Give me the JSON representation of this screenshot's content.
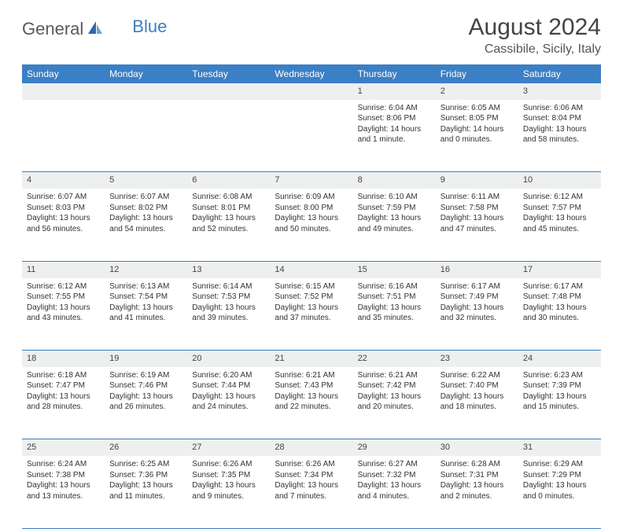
{
  "brand": {
    "name_gray": "General",
    "name_blue": "Blue"
  },
  "header": {
    "title": "August 2024",
    "location": "Cassibile, Sicily, Italy"
  },
  "colors": {
    "accent": "#3b7fc4",
    "header_text": "#ffffff",
    "daynum_bg": "#eef0f0"
  },
  "weekdays": [
    "Sunday",
    "Monday",
    "Tuesday",
    "Wednesday",
    "Thursday",
    "Friday",
    "Saturday"
  ],
  "weeks": [
    {
      "nums": [
        "",
        "",
        "",
        "",
        "1",
        "2",
        "3"
      ],
      "cells": [
        null,
        null,
        null,
        null,
        {
          "sunrise": "Sunrise: 6:04 AM",
          "sunset": "Sunset: 8:06 PM",
          "day1": "Daylight: 14 hours",
          "day2": "and 1 minute."
        },
        {
          "sunrise": "Sunrise: 6:05 AM",
          "sunset": "Sunset: 8:05 PM",
          "day1": "Daylight: 14 hours",
          "day2": "and 0 minutes."
        },
        {
          "sunrise": "Sunrise: 6:06 AM",
          "sunset": "Sunset: 8:04 PM",
          "day1": "Daylight: 13 hours",
          "day2": "and 58 minutes."
        }
      ]
    },
    {
      "nums": [
        "4",
        "5",
        "6",
        "7",
        "8",
        "9",
        "10"
      ],
      "cells": [
        {
          "sunrise": "Sunrise: 6:07 AM",
          "sunset": "Sunset: 8:03 PM",
          "day1": "Daylight: 13 hours",
          "day2": "and 56 minutes."
        },
        {
          "sunrise": "Sunrise: 6:07 AM",
          "sunset": "Sunset: 8:02 PM",
          "day1": "Daylight: 13 hours",
          "day2": "and 54 minutes."
        },
        {
          "sunrise": "Sunrise: 6:08 AM",
          "sunset": "Sunset: 8:01 PM",
          "day1": "Daylight: 13 hours",
          "day2": "and 52 minutes."
        },
        {
          "sunrise": "Sunrise: 6:09 AM",
          "sunset": "Sunset: 8:00 PM",
          "day1": "Daylight: 13 hours",
          "day2": "and 50 minutes."
        },
        {
          "sunrise": "Sunrise: 6:10 AM",
          "sunset": "Sunset: 7:59 PM",
          "day1": "Daylight: 13 hours",
          "day2": "and 49 minutes."
        },
        {
          "sunrise": "Sunrise: 6:11 AM",
          "sunset": "Sunset: 7:58 PM",
          "day1": "Daylight: 13 hours",
          "day2": "and 47 minutes."
        },
        {
          "sunrise": "Sunrise: 6:12 AM",
          "sunset": "Sunset: 7:57 PM",
          "day1": "Daylight: 13 hours",
          "day2": "and 45 minutes."
        }
      ]
    },
    {
      "nums": [
        "11",
        "12",
        "13",
        "14",
        "15",
        "16",
        "17"
      ],
      "cells": [
        {
          "sunrise": "Sunrise: 6:12 AM",
          "sunset": "Sunset: 7:55 PM",
          "day1": "Daylight: 13 hours",
          "day2": "and 43 minutes."
        },
        {
          "sunrise": "Sunrise: 6:13 AM",
          "sunset": "Sunset: 7:54 PM",
          "day1": "Daylight: 13 hours",
          "day2": "and 41 minutes."
        },
        {
          "sunrise": "Sunrise: 6:14 AM",
          "sunset": "Sunset: 7:53 PM",
          "day1": "Daylight: 13 hours",
          "day2": "and 39 minutes."
        },
        {
          "sunrise": "Sunrise: 6:15 AM",
          "sunset": "Sunset: 7:52 PM",
          "day1": "Daylight: 13 hours",
          "day2": "and 37 minutes."
        },
        {
          "sunrise": "Sunrise: 6:16 AM",
          "sunset": "Sunset: 7:51 PM",
          "day1": "Daylight: 13 hours",
          "day2": "and 35 minutes."
        },
        {
          "sunrise": "Sunrise: 6:17 AM",
          "sunset": "Sunset: 7:49 PM",
          "day1": "Daylight: 13 hours",
          "day2": "and 32 minutes."
        },
        {
          "sunrise": "Sunrise: 6:17 AM",
          "sunset": "Sunset: 7:48 PM",
          "day1": "Daylight: 13 hours",
          "day2": "and 30 minutes."
        }
      ]
    },
    {
      "nums": [
        "18",
        "19",
        "20",
        "21",
        "22",
        "23",
        "24"
      ],
      "cells": [
        {
          "sunrise": "Sunrise: 6:18 AM",
          "sunset": "Sunset: 7:47 PM",
          "day1": "Daylight: 13 hours",
          "day2": "and 28 minutes."
        },
        {
          "sunrise": "Sunrise: 6:19 AM",
          "sunset": "Sunset: 7:46 PM",
          "day1": "Daylight: 13 hours",
          "day2": "and 26 minutes."
        },
        {
          "sunrise": "Sunrise: 6:20 AM",
          "sunset": "Sunset: 7:44 PM",
          "day1": "Daylight: 13 hours",
          "day2": "and 24 minutes."
        },
        {
          "sunrise": "Sunrise: 6:21 AM",
          "sunset": "Sunset: 7:43 PM",
          "day1": "Daylight: 13 hours",
          "day2": "and 22 minutes."
        },
        {
          "sunrise": "Sunrise: 6:21 AM",
          "sunset": "Sunset: 7:42 PM",
          "day1": "Daylight: 13 hours",
          "day2": "and 20 minutes."
        },
        {
          "sunrise": "Sunrise: 6:22 AM",
          "sunset": "Sunset: 7:40 PM",
          "day1": "Daylight: 13 hours",
          "day2": "and 18 minutes."
        },
        {
          "sunrise": "Sunrise: 6:23 AM",
          "sunset": "Sunset: 7:39 PM",
          "day1": "Daylight: 13 hours",
          "day2": "and 15 minutes."
        }
      ]
    },
    {
      "nums": [
        "25",
        "26",
        "27",
        "28",
        "29",
        "30",
        "31"
      ],
      "cells": [
        {
          "sunrise": "Sunrise: 6:24 AM",
          "sunset": "Sunset: 7:38 PM",
          "day1": "Daylight: 13 hours",
          "day2": "and 13 minutes."
        },
        {
          "sunrise": "Sunrise: 6:25 AM",
          "sunset": "Sunset: 7:36 PM",
          "day1": "Daylight: 13 hours",
          "day2": "and 11 minutes."
        },
        {
          "sunrise": "Sunrise: 6:26 AM",
          "sunset": "Sunset: 7:35 PM",
          "day1": "Daylight: 13 hours",
          "day2": "and 9 minutes."
        },
        {
          "sunrise": "Sunrise: 6:26 AM",
          "sunset": "Sunset: 7:34 PM",
          "day1": "Daylight: 13 hours",
          "day2": "and 7 minutes."
        },
        {
          "sunrise": "Sunrise: 6:27 AM",
          "sunset": "Sunset: 7:32 PM",
          "day1": "Daylight: 13 hours",
          "day2": "and 4 minutes."
        },
        {
          "sunrise": "Sunrise: 6:28 AM",
          "sunset": "Sunset: 7:31 PM",
          "day1": "Daylight: 13 hours",
          "day2": "and 2 minutes."
        },
        {
          "sunrise": "Sunrise: 6:29 AM",
          "sunset": "Sunset: 7:29 PM",
          "day1": "Daylight: 13 hours",
          "day2": "and 0 minutes."
        }
      ]
    }
  ]
}
